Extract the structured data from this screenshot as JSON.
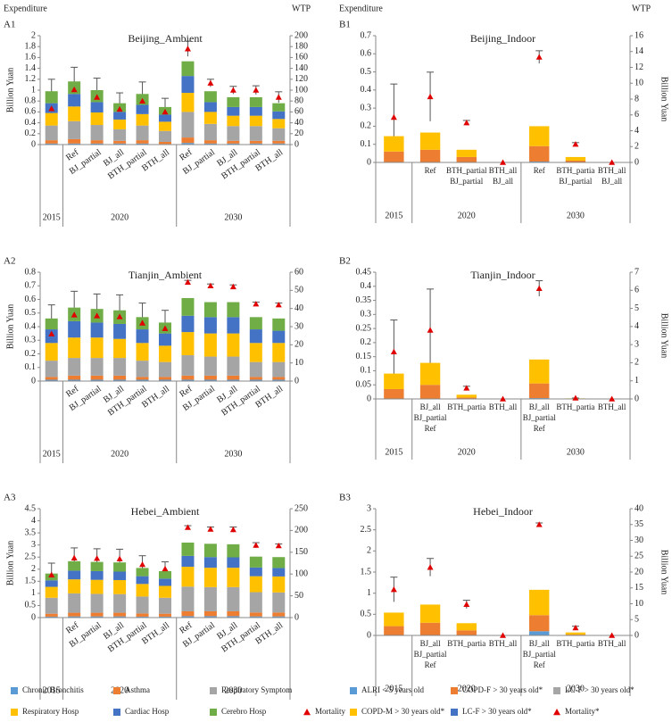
{
  "legends": [
    {
      "items": [
        {
          "name": "Chronic Bronchitis",
          "color": "#5b9bd5"
        },
        {
          "name": "Asthma",
          "color": "#ed7d31"
        },
        {
          "name": "Respiratory Symptom",
          "color": "#a5a5a5"
        },
        {
          "name": "Respiratory Hosp",
          "color": "#ffc000"
        },
        {
          "name": "Cardiac Hosp",
          "color": "#4472c4"
        },
        {
          "name": "Cerebro Hosp",
          "color": "#70ad47"
        },
        {
          "name": "Mortality",
          "color": "#e00000",
          "marker": "triangle"
        }
      ]
    },
    {
      "items": [
        {
          "name": "ALRI < 5 years old",
          "color": "#5b9bd5"
        },
        {
          "name": "COPD-F > 30 years old*",
          "color": "#ed7d31"
        },
        {
          "name": "LC-F > 30 years old*",
          "color": "#a5a5a5"
        },
        {
          "name": "COPD-M > 30 years old*",
          "color": "#ffc000"
        },
        {
          "name": "LC-F > 30 years old*",
          "color": "#4472c4"
        },
        {
          "name": "Mortality*",
          "color": "#e00000",
          "marker": "triangle"
        }
      ]
    }
  ],
  "chart_data": [
    {
      "type": "bar",
      "panel": "A1",
      "title": "Beijing_Ambient",
      "left_caption": "Expenditure",
      "right_caption": "WTP",
      "ylabel": "Billion Yuan",
      "ylim": [
        0,
        2
      ],
      "yticks": [
        0,
        0.2,
        0.4,
        0.6,
        0.8,
        1,
        1.2,
        1.4,
        1.6,
        1.8,
        2
      ],
      "y2lim": [
        0,
        200
      ],
      "y2ticks": [
        0,
        20,
        40,
        60,
        80,
        100,
        120,
        140,
        160,
        180,
        200
      ],
      "categories": [
        null,
        [
          "Ref"
        ],
        [
          "BJ_partial"
        ],
        [
          "BJ_all"
        ],
        [
          "BTH_partial"
        ],
        [
          "BTH_all"
        ],
        [
          "Ref"
        ],
        [
          "BJ_partial"
        ],
        [
          "BJ_all"
        ],
        [
          "BTH_partial"
        ],
        [
          "BTH_all"
        ]
      ],
      "groups": [
        {
          "label": "2015",
          "count": 1
        },
        {
          "label": "2020",
          "count": 5
        },
        {
          "label": "2030",
          "count": 5
        }
      ],
      "series": [
        {
          "values": [
            0.02,
            0.02,
            0.02,
            0.02,
            0.02,
            0.01,
            0.03,
            0.02,
            0.02,
            0.02,
            0.02
          ]
        },
        {
          "values": [
            0.06,
            0.08,
            0.06,
            0.05,
            0.06,
            0.04,
            0.1,
            0.06,
            0.05,
            0.05,
            0.05
          ]
        },
        {
          "values": [
            0.27,
            0.33,
            0.28,
            0.21,
            0.27,
            0.2,
            0.47,
            0.3,
            0.27,
            0.27,
            0.23
          ]
        },
        {
          "values": [
            0.23,
            0.27,
            0.23,
            0.18,
            0.21,
            0.17,
            0.35,
            0.22,
            0.19,
            0.19,
            0.17
          ]
        },
        {
          "values": [
            0.18,
            0.23,
            0.19,
            0.14,
            0.17,
            0.13,
            0.31,
            0.18,
            0.16,
            0.16,
            0.14
          ]
        },
        {
          "values": [
            0.22,
            0.23,
            0.22,
            0.16,
            0.2,
            0.14,
            0.27,
            0.2,
            0.18,
            0.18,
            0.15
          ]
        },
        {
          "axis": "y2",
          "values": [
            66,
            101,
            87,
            65,
            80,
            60,
            176,
            113,
            100,
            100,
            87
          ],
          "errors": [
            54,
            41,
            35,
            30,
            35,
            25,
            14,
            7,
            7,
            8,
            10
          ]
        }
      ]
    },
    {
      "type": "bar",
      "panel": "A2",
      "title": "Tianjin_Ambient",
      "ylabel": "Billion Yuan",
      "ylim": [
        0,
        0.8
      ],
      "yticks": [
        0,
        0.1,
        0.2,
        0.3,
        0.4,
        0.5,
        0.6,
        0.7,
        0.8
      ],
      "y2lim": [
        0,
        60
      ],
      "y2ticks": [
        0,
        10,
        20,
        30,
        40,
        50,
        60
      ],
      "categories": [
        null,
        [
          "Ref"
        ],
        [
          "BJ_partial"
        ],
        [
          "BJ_all"
        ],
        [
          "BTH_partial"
        ],
        [
          "BTH_all"
        ],
        [
          "Ref"
        ],
        [
          "BJ_partial"
        ],
        [
          "BJ_all"
        ],
        [
          "BTH_partial"
        ],
        [
          "BTH_all"
        ]
      ],
      "groups": [
        {
          "label": "2015",
          "count": 1
        },
        {
          "label": "2020",
          "count": 5
        },
        {
          "label": "2030",
          "count": 5
        }
      ],
      "series": [
        {
          "values": [
            0.01,
            0.01,
            0.01,
            0.01,
            0.01,
            0.01,
            0.01,
            0.01,
            0.01,
            0.01,
            0.01
          ]
        },
        {
          "values": [
            0.02,
            0.03,
            0.03,
            0.03,
            0.02,
            0.02,
            0.03,
            0.03,
            0.03,
            0.02,
            0.02
          ]
        },
        {
          "values": [
            0.12,
            0.13,
            0.13,
            0.13,
            0.12,
            0.11,
            0.15,
            0.14,
            0.14,
            0.11,
            0.11
          ]
        },
        {
          "values": [
            0.13,
            0.15,
            0.15,
            0.14,
            0.13,
            0.12,
            0.17,
            0.17,
            0.17,
            0.14,
            0.14
          ]
        },
        {
          "values": [
            0.1,
            0.12,
            0.11,
            0.11,
            0.1,
            0.09,
            0.12,
            0.12,
            0.12,
            0.1,
            0.09
          ]
        },
        {
          "values": [
            0.08,
            0.1,
            0.1,
            0.1,
            0.09,
            0.08,
            0.13,
            0.11,
            0.11,
            0.09,
            0.09
          ]
        },
        {
          "axis": "y2",
          "values": [
            26,
            36.5,
            36,
            35.5,
            32,
            29,
            54.5,
            52.5,
            52,
            42.5,
            42
          ],
          "errors": [
            16,
            13,
            12,
            12,
            11,
            10,
            1,
            1,
            1,
            1,
            1
          ]
        }
      ]
    },
    {
      "type": "bar",
      "panel": "A3",
      "title": "Hebei_Ambient",
      "ylabel": "Billion Yuan",
      "ylim": [
        0,
        4.5
      ],
      "yticks": [
        0,
        0.5,
        1,
        1.5,
        2,
        2.5,
        3,
        3.5,
        4,
        4.5
      ],
      "y2lim": [
        0,
        250
      ],
      "y2ticks": [
        0,
        50,
        100,
        150,
        200,
        250
      ],
      "categories": [
        null,
        [
          "Ref"
        ],
        [
          "BJ_partial"
        ],
        [
          "BJ_all"
        ],
        [
          "BTH_partial"
        ],
        [
          "BTH_all"
        ],
        [
          "Ref"
        ],
        [
          "BJ_partial"
        ],
        [
          "BJ_all"
        ],
        [
          "BTH_partial"
        ],
        [
          "BTH_all"
        ]
      ],
      "groups": [
        {
          "label": "2015",
          "count": 1
        },
        {
          "label": "2020",
          "count": 5
        },
        {
          "label": "2030",
          "count": 5
        }
      ],
      "series": [
        {
          "values": [
            0.04,
            0.05,
            0.05,
            0.05,
            0.04,
            0.04,
            0.06,
            0.06,
            0.06,
            0.05,
            0.05
          ]
        },
        {
          "values": [
            0.12,
            0.15,
            0.15,
            0.15,
            0.13,
            0.12,
            0.2,
            0.2,
            0.2,
            0.16,
            0.16
          ]
        },
        {
          "values": [
            0.66,
            0.8,
            0.78,
            0.77,
            0.7,
            0.66,
            1.02,
            1.0,
            1.0,
            0.84,
            0.83
          ]
        },
        {
          "values": [
            0.45,
            0.58,
            0.58,
            0.58,
            0.52,
            0.49,
            0.82,
            0.8,
            0.8,
            0.66,
            0.66
          ]
        },
        {
          "values": [
            0.27,
            0.36,
            0.36,
            0.35,
            0.32,
            0.3,
            0.45,
            0.44,
            0.43,
            0.36,
            0.35
          ]
        },
        {
          "values": [
            0.28,
            0.39,
            0.38,
            0.38,
            0.34,
            0.31,
            0.55,
            0.55,
            0.54,
            0.45,
            0.45
          ]
        },
        {
          "axis": "y2",
          "values": [
            98,
            137,
            136,
            135,
            122,
            112,
            207,
            203,
            202,
            166,
            165
          ],
          "errors": [
            27,
            23,
            22,
            22,
            20,
            16,
            4,
            5,
            6,
            6,
            4
          ]
        }
      ]
    },
    {
      "type": "bar",
      "panel": "B1",
      "title": "Beijing_Indoor",
      "left_caption": "Expenditure",
      "right_caption": "WTP",
      "y2label": "Billion Yuan",
      "ylim": [
        0,
        0.7
      ],
      "yticks": [
        0,
        0.1,
        0.2,
        0.3,
        0.4,
        0.5,
        0.6,
        0.7
      ],
      "y2lim": [
        0,
        16
      ],
      "y2ticks": [
        0,
        2,
        4,
        6,
        8,
        10,
        12,
        14,
        16
      ],
      "categories": [
        null,
        [
          "Ref"
        ],
        [
          "BTH_partial",
          "BJ_partial"
        ],
        [
          "BTH_all",
          "BJ_all"
        ],
        [
          "Ref"
        ],
        [
          "BTH_partia",
          "BJ_partial"
        ],
        [
          "BTH_all",
          "BJ_all"
        ]
      ],
      "groups": [
        {
          "label": "2015",
          "count": 1
        },
        {
          "label": "2020",
          "count": 3
        },
        {
          "label": "2030",
          "count": 3
        }
      ],
      "series": [
        {
          "values": [
            0,
            0,
            0,
            0,
            0.005,
            0,
            0
          ]
        },
        {
          "values": [
            0.06,
            0.07,
            0.03,
            0,
            0.085,
            0.01,
            0
          ]
        },
        {
          "values": [
            0,
            0,
            0,
            0,
            0,
            0,
            0
          ]
        },
        {
          "values": [
            0.085,
            0.095,
            0.04,
            0,
            0.11,
            0.02,
            0
          ]
        },
        {
          "values": [
            0,
            0,
            0,
            0,
            0,
            0,
            0
          ]
        },
        {
          "axis": "y2",
          "values": [
            5.7,
            8.3,
            5.0,
            0,
            13.3,
            2.3,
            0
          ],
          "errors": [
            4.2,
            3.1,
            0.3,
            0,
            0.8,
            0.2,
            0
          ]
        }
      ]
    },
    {
      "type": "bar",
      "panel": "B2",
      "title": "Tianjin_Indoor",
      "y2label": "Billion Yuan",
      "ylim": [
        0,
        0.45
      ],
      "yticks": [
        0,
        0.05,
        0.1,
        0.15,
        0.2,
        0.25,
        0.3,
        0.35,
        0.4,
        0.45
      ],
      "y2lim": [
        0,
        7
      ],
      "y2ticks": [
        0,
        1,
        2,
        3,
        4,
        5,
        6,
        7
      ],
      "categories": [
        null,
        [
          "BJ_all",
          "BJ_partial",
          "Ref"
        ],
        [
          "BTH_partia"
        ],
        [
          "BTH_all"
        ],
        [
          "BJ_all",
          "BJ_partial",
          "Ref"
        ],
        [
          "BTH_partia"
        ],
        [
          "BTH_all"
        ]
      ],
      "groups": [
        {
          "label": "2015",
          "count": 1
        },
        {
          "label": "2020",
          "count": 3
        },
        {
          "label": "2030",
          "count": 3
        }
      ],
      "series": [
        {
          "values": [
            0,
            0,
            0,
            0,
            0.003,
            0,
            0
          ]
        },
        {
          "values": [
            0.035,
            0.05,
            0.005,
            0,
            0.052,
            0,
            0
          ]
        },
        {
          "values": [
            0,
            0,
            0,
            0,
            0,
            0,
            0
          ]
        },
        {
          "values": [
            0.055,
            0.078,
            0.01,
            0,
            0.085,
            0.002,
            0
          ]
        },
        {
          "values": [
            0,
            0,
            0,
            0,
            0,
            0,
            0
          ]
        },
        {
          "axis": "y2",
          "values": [
            2.6,
            3.8,
            0.6,
            0,
            6.1,
            0.05,
            0
          ],
          "errors": [
            1.76,
            2.27,
            0.1,
            0,
            0.43,
            0,
            0
          ]
        }
      ]
    },
    {
      "type": "bar",
      "panel": "B3",
      "title": "Hebei_Indoor",
      "y2label": "Billion Yuan",
      "ylim": [
        0,
        3
      ],
      "yticks": [
        0,
        0.5,
        1,
        1.5,
        2,
        2.5,
        3
      ],
      "y2lim": [
        0,
        40
      ],
      "y2ticks": [
        0,
        5,
        10,
        15,
        20,
        25,
        30,
        35,
        40
      ],
      "categories": [
        null,
        [
          "BJ_all",
          "BJ_partial",
          "Ref"
        ],
        [
          "BTH_partia"
        ],
        [
          "BTH_all"
        ],
        [
          "BJ_all",
          "BJ_partial",
          "Ref"
        ],
        [
          "BTH_partia"
        ],
        [
          "BTH_all"
        ]
      ],
      "groups": [
        {
          "label": "2015",
          "count": 1
        },
        {
          "label": "2020",
          "count": 3
        },
        {
          "label": "2030",
          "count": 3
        }
      ],
      "series": [
        {
          "values": [
            0,
            0,
            0,
            0,
            0.1,
            0,
            0
          ]
        },
        {
          "values": [
            0.22,
            0.3,
            0.12,
            0,
            0.38,
            0.02,
            0
          ]
        },
        {
          "values": [
            0,
            0,
            0,
            0,
            0,
            0,
            0
          ]
        },
        {
          "values": [
            0.32,
            0.43,
            0.17,
            0,
            0.6,
            0.05,
            0
          ]
        },
        {
          "values": [
            0,
            0,
            0,
            0,
            0,
            0,
            0
          ]
        },
        {
          "axis": "y2",
          "values": [
            14.5,
            21.5,
            9.8,
            0,
            35,
            2.4,
            0
          ],
          "errors": [
            3.9,
            2.8,
            1.3,
            0,
            0.5,
            0.5,
            0
          ]
        }
      ]
    }
  ]
}
